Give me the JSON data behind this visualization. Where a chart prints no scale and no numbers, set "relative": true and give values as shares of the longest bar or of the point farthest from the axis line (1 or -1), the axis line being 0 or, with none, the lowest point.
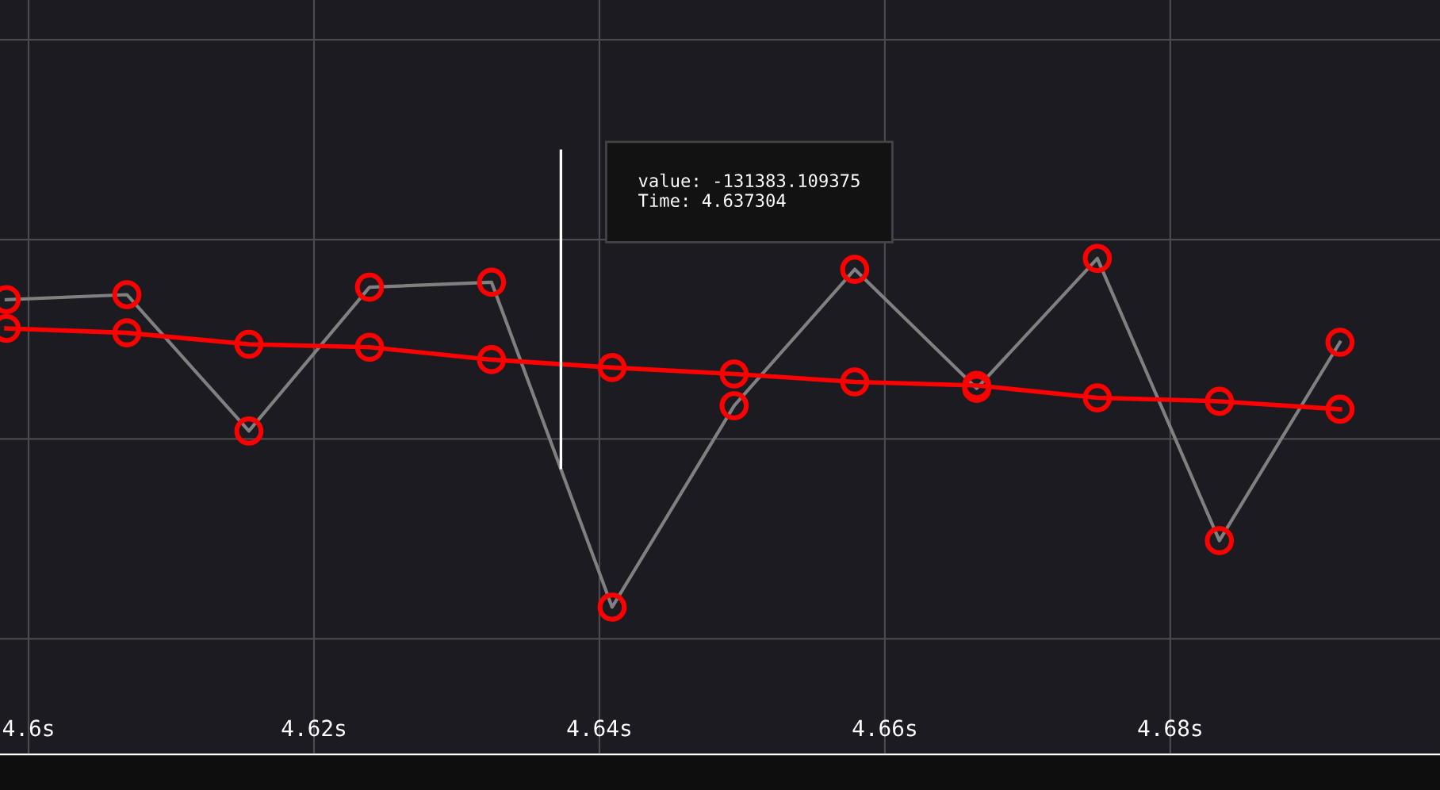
{
  "chart_data": {
    "type": "line",
    "relative": true,
    "tick_labels": "x",
    "grid": true,
    "marker": "circle",
    "line_style": "solid",
    "legend": false,
    "xlim": [
      4.598,
      4.6989
    ],
    "xticks": [
      {
        "value": 4.6,
        "label": "4.6s"
      },
      {
        "value": 4.62,
        "label": "4.62s"
      },
      {
        "value": 4.64,
        "label": "4.64s"
      },
      {
        "value": 4.66,
        "label": "4.66s"
      },
      {
        "value": 4.68,
        "label": "4.68s"
      }
    ],
    "series": [
      {
        "color": "#808080",
        "x": [
          4.59844,
          4.60689,
          4.61544,
          4.62389,
          4.63244,
          4.64089,
          4.64944,
          4.65789,
          4.66644,
          4.67489,
          4.68344,
          4.69189
        ],
        "values": [
          0.917,
          0.927,
          0.652,
          0.942,
          0.952,
          0.297,
          0.703,
          0.978,
          0.738,
          1,
          0.431,
          0.831
        ]
      },
      {
        "color": "#ff0000",
        "x": [
          4.59844,
          4.60689,
          4.61544,
          4.62389,
          4.63244,
          4.64089,
          4.64944,
          4.65789,
          4.66644,
          4.67489,
          4.68344,
          4.69189
        ],
        "values": [
          0.859,
          0.85,
          0.827,
          0.821,
          0.796,
          0.78,
          0.767,
          0.751,
          0.744,
          0.719,
          0.712,
          0.696
        ]
      }
    ],
    "ref_lines": [
      {
        "axis": "x",
        "value": 4.637304,
        "color": "#ffffff"
      }
    ],
    "annotations": [
      "value: -131383.109375\nTime: 4.637304"
    ]
  }
}
